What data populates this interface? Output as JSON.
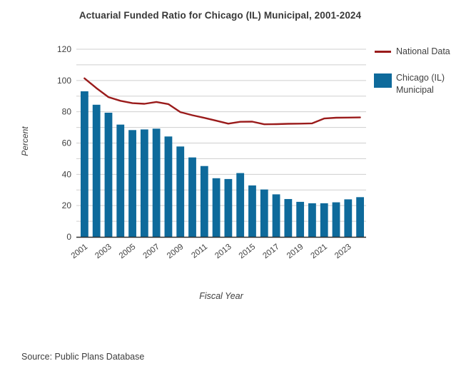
{
  "title": "Actuarial Funded Ratio for Chicago (IL) Municipal, 2001-2024",
  "source_note": "Source: Public Plans Database",
  "colors": {
    "national_line": "#9a1b1b",
    "chicago_bar": "#0e6a9b",
    "gridline": "#cfcfcf",
    "axis": "#2e2e2e",
    "tick_text": "#3f3f3f",
    "title_text": "#383838"
  },
  "chart_data": {
    "type": "bar",
    "title": "Actuarial Funded Ratio for Chicago (IL) Municipal, 2001-2024",
    "xlabel": "Fiscal Year",
    "ylabel": "Percent",
    "ylim": [
      0,
      120
    ],
    "grid": true,
    "gridline_step": 10,
    "legend_position": "right",
    "ytick_values": [
      0,
      20,
      40,
      60,
      80,
      100,
      120
    ],
    "ytick_labels": [
      "0",
      "20",
      "40",
      "60",
      "80",
      "100",
      "120"
    ],
    "categories": [
      "2001",
      "2002",
      "2003",
      "2004",
      "2005",
      "2006",
      "2007",
      "2008",
      "2009",
      "2010",
      "2011",
      "2012",
      "2013",
      "2014",
      "2015",
      "2016",
      "2017",
      "2018",
      "2019",
      "2020",
      "2021",
      "2022",
      "2023",
      "2024"
    ],
    "xtick_labels": [
      "2001",
      "2003",
      "2005",
      "2007",
      "2009",
      "2011",
      "2013",
      "2015",
      "2017",
      "2019",
      "2021",
      "2023"
    ],
    "series": [
      {
        "name": "National Data",
        "type": "line",
        "color": "#9a1b1b",
        "values": [
          101.4,
          95.1,
          89.4,
          87.0,
          85.5,
          85.1,
          86.3,
          84.9,
          79.8,
          77.8,
          76.1,
          74.3,
          72.4,
          73.6,
          73.7,
          72.0,
          72.1,
          72.3,
          72.4,
          72.6,
          75.7,
          76.2,
          76.3,
          76.4
        ]
      },
      {
        "name": "Chicago (IL) Municipal",
        "type": "bar",
        "color": "#0e6a9b",
        "values": [
          93.1,
          84.5,
          79.4,
          71.8,
          68.3,
          68.7,
          69.2,
          64.2,
          57.8,
          50.8,
          45.3,
          37.5,
          37.0,
          40.8,
          32.9,
          30.3,
          27.2,
          24.2,
          22.4,
          21.5,
          21.5,
          22.1,
          24.0,
          25.4
        ]
      }
    ]
  }
}
